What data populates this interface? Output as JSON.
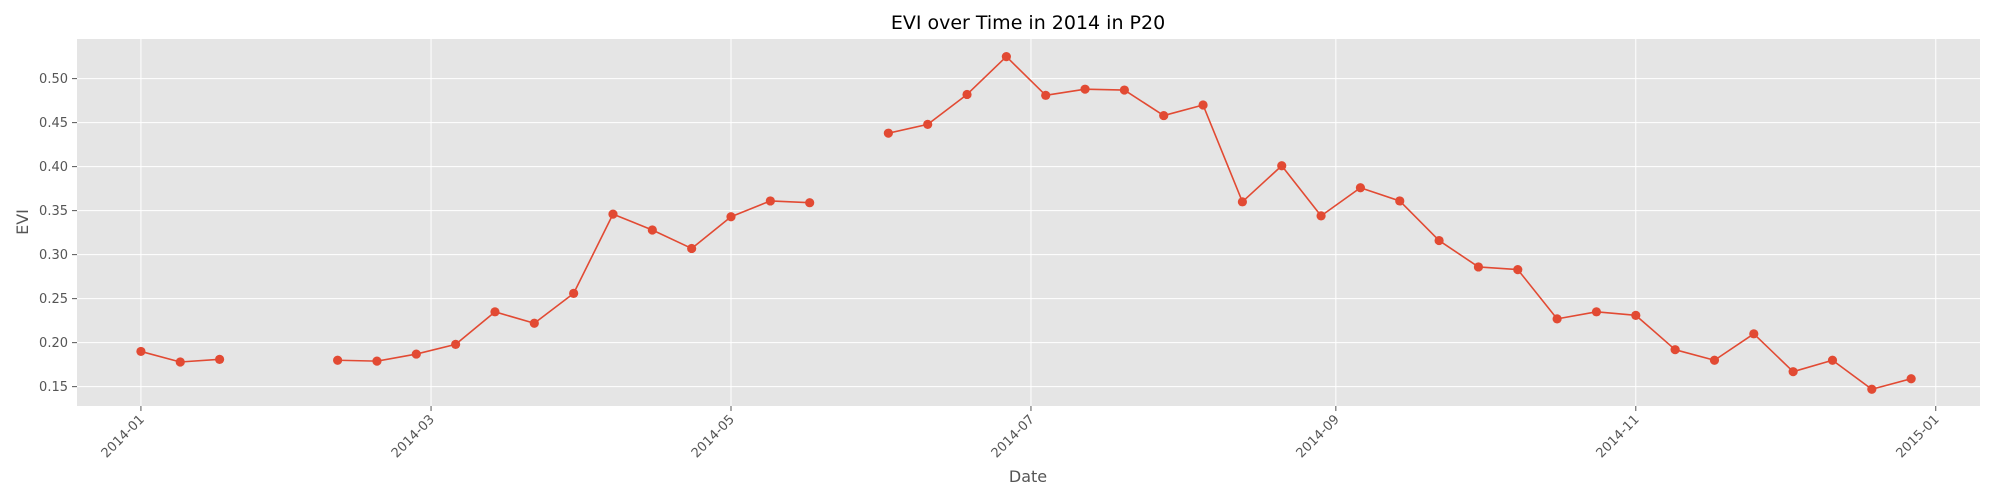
{
  "chart_data": {
    "type": "line",
    "title": "EVI over Time in 2014 in P20",
    "xlabel": "Date",
    "ylabel": "EVI",
    "grid": true,
    "xlim": [
      "2013-12-19",
      "2015-01-10"
    ],
    "ylim": [
      0.128,
      0.545
    ],
    "x_ticks": [
      "2014-01-01",
      "2014-03-01",
      "2014-05-01",
      "2014-07-01",
      "2014-09-01",
      "2014-11-01",
      "2015-01-01"
    ],
    "x_tick_labels": [
      "2014-01",
      "2014-03",
      "2014-05",
      "2014-07",
      "2014-09",
      "2014-11",
      "2015-01"
    ],
    "y_ticks": [
      0.15,
      0.2,
      0.25,
      0.3,
      0.35,
      0.4,
      0.45,
      0.5
    ],
    "y_tick_labels": [
      "0.15",
      "0.20",
      "0.25",
      "0.30",
      "0.35",
      "0.40",
      "0.45",
      "0.50"
    ],
    "series": [
      {
        "color": "#E24A33",
        "points": [
          {
            "x": "2014-01-01",
            "y": 0.19
          },
          {
            "x": "2014-01-09",
            "y": 0.178
          },
          {
            "x": "2014-01-17",
            "y": 0.181
          },
          {
            "x": "2014-02-02",
            "y": null
          },
          {
            "x": "2014-02-10",
            "y": 0.18
          },
          {
            "x": "2014-02-18",
            "y": 0.179
          },
          {
            "x": "2014-02-26",
            "y": 0.187
          },
          {
            "x": "2014-03-06",
            "y": 0.198
          },
          {
            "x": "2014-03-14",
            "y": 0.235
          },
          {
            "x": "2014-03-22",
            "y": 0.222
          },
          {
            "x": "2014-03-30",
            "y": 0.256
          },
          {
            "x": "2014-04-07",
            "y": 0.346
          },
          {
            "x": "2014-04-15",
            "y": 0.328
          },
          {
            "x": "2014-04-23",
            "y": 0.307
          },
          {
            "x": "2014-05-01",
            "y": 0.343
          },
          {
            "x": "2014-05-09",
            "y": 0.361
          },
          {
            "x": "2014-05-17",
            "y": 0.359
          },
          {
            "x": "2014-05-25",
            "y": null
          },
          {
            "x": "2014-06-02",
            "y": 0.438
          },
          {
            "x": "2014-06-10",
            "y": 0.448
          },
          {
            "x": "2014-06-18",
            "y": 0.482
          },
          {
            "x": "2014-06-26",
            "y": 0.525
          },
          {
            "x": "2014-07-04",
            "y": 0.481
          },
          {
            "x": "2014-07-12",
            "y": 0.488
          },
          {
            "x": "2014-07-20",
            "y": 0.487
          },
          {
            "x": "2014-07-28",
            "y": 0.458
          },
          {
            "x": "2014-08-05",
            "y": 0.47
          },
          {
            "x": "2014-08-13",
            "y": 0.36
          },
          {
            "x": "2014-08-21",
            "y": 0.401
          },
          {
            "x": "2014-08-29",
            "y": 0.344
          },
          {
            "x": "2014-09-06",
            "y": 0.376
          },
          {
            "x": "2014-09-14",
            "y": 0.361
          },
          {
            "x": "2014-09-22",
            "y": 0.316
          },
          {
            "x": "2014-09-30",
            "y": 0.286
          },
          {
            "x": "2014-10-08",
            "y": 0.283
          },
          {
            "x": "2014-10-16",
            "y": 0.227
          },
          {
            "x": "2014-10-24",
            "y": 0.235
          },
          {
            "x": "2014-11-01",
            "y": 0.231
          },
          {
            "x": "2014-11-09",
            "y": 0.192
          },
          {
            "x": "2014-11-17",
            "y": 0.18
          },
          {
            "x": "2014-11-25",
            "y": 0.21
          },
          {
            "x": "2014-12-03",
            "y": 0.167
          },
          {
            "x": "2014-12-11",
            "y": 0.18
          },
          {
            "x": "2014-12-19",
            "y": 0.147
          },
          {
            "x": "2014-12-27",
            "y": 0.159
          }
        ]
      }
    ]
  },
  "colors": {
    "plot_background": "#E5E5E5",
    "grid": "#FFFFFF",
    "line": "#E24A33",
    "text": "#555555"
  }
}
